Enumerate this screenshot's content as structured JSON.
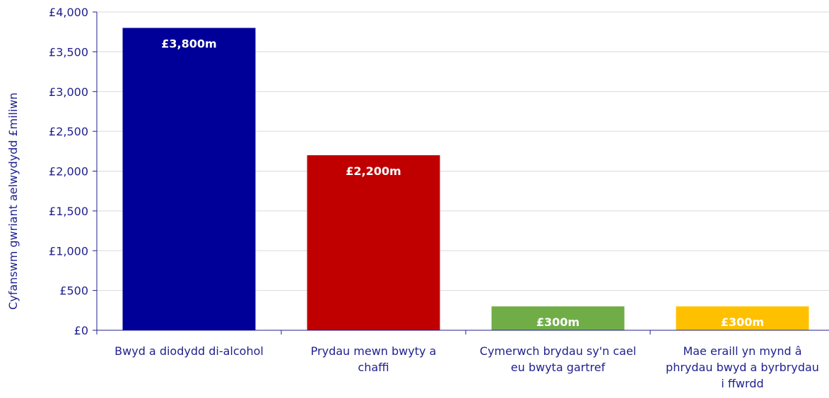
{
  "chart_data": {
    "type": "bar",
    "title": "",
    "xlabel": "",
    "ylabel": "Cyfanswm gwriant aelwydydd £miliwn",
    "ylim": [
      0,
      4000
    ],
    "yticks": [
      0,
      500,
      1000,
      1500,
      2000,
      2500,
      3000,
      3500,
      4000
    ],
    "ytick_labels": [
      "£0",
      "£500",
      "£1,000",
      "£1,500",
      "£2,000",
      "£2,500",
      "£3,000",
      "£3,500",
      "£4,000"
    ],
    "grid": true,
    "categories": [
      [
        "Bwyd a diodydd di-alcohol"
      ],
      [
        "Prydau mewn bwyty a",
        "chaffi"
      ],
      [
        "Cymerwch brydau sy'n cael",
        "eu bwyta gartref"
      ],
      [
        "Mae eraill yn mynd â",
        "phrydau bwyd a byrbrydau",
        "i ffwrdd"
      ]
    ],
    "values": [
      3800,
      2200,
      300,
      300
    ],
    "data_labels": [
      "£3,800m",
      "£2,200m",
      "£300m",
      "£300m"
    ],
    "colors": [
      "#000099",
      "#c00000",
      "#70ad47",
      "#ffc000"
    ],
    "axis_color": "#1f1f8f",
    "grid_color": "#d9d9d9"
  }
}
